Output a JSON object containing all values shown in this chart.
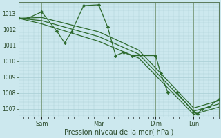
{
  "title": "",
  "xlabel": "Pression niveau de la mer( hPa )",
  "bg_color": "#cce8ee",
  "grid_color": "#a8cdd4",
  "line_color": "#2d6a2d",
  "marker_color": "#2d6a2d",
  "ylim": [
    1006.5,
    1013.7
  ],
  "yticks": [
    1007,
    1008,
    1009,
    1010,
    1011,
    1012,
    1013
  ],
  "xlim": [
    0,
    1.0
  ],
  "day_positions": [
    0.115,
    0.4,
    0.685,
    0.875
  ],
  "day_labels": [
    "Sam",
    "Mar",
    "Dim",
    "Lun"
  ],
  "vline_positions": [
    0.0,
    0.115,
    0.4,
    0.685,
    0.875
  ],
  "vline_color": "#7a9a7a",
  "series_main": {
    "x": [
      0.0,
      0.045,
      0.115,
      0.19,
      0.23,
      0.265,
      0.325,
      0.4,
      0.445,
      0.485,
      0.525,
      0.565,
      0.685,
      0.71,
      0.745,
      0.79,
      0.875,
      0.895,
      0.92,
      0.95,
      1.0
    ],
    "y": [
      1012.7,
      1012.7,
      1013.1,
      1011.9,
      1011.15,
      1011.85,
      1013.5,
      1013.55,
      1012.15,
      1010.35,
      1010.55,
      1010.35,
      1010.35,
      1009.25,
      1008.05,
      1008.05,
      1006.8,
      1006.7,
      1007.0,
      1007.1,
      1007.6
    ],
    "marker": "D",
    "ms": 2.2,
    "lw": 0.9
  },
  "series_smooth": [
    {
      "x": [
        0.0,
        0.115,
        0.4,
        0.6,
        0.875,
        1.0
      ],
      "y": [
        1012.7,
        1012.75,
        1011.85,
        1010.7,
        1007.05,
        1007.5
      ],
      "lw": 0.9
    },
    {
      "x": [
        0.0,
        0.115,
        0.4,
        0.6,
        0.875,
        1.0
      ],
      "y": [
        1012.7,
        1012.55,
        1011.55,
        1010.45,
        1006.85,
        1007.3
      ],
      "lw": 0.9
    },
    {
      "x": [
        0.0,
        0.115,
        0.4,
        0.6,
        0.875,
        1.0
      ],
      "y": [
        1012.7,
        1012.35,
        1011.25,
        1010.2,
        1006.65,
        1007.1
      ],
      "lw": 0.9
    }
  ]
}
